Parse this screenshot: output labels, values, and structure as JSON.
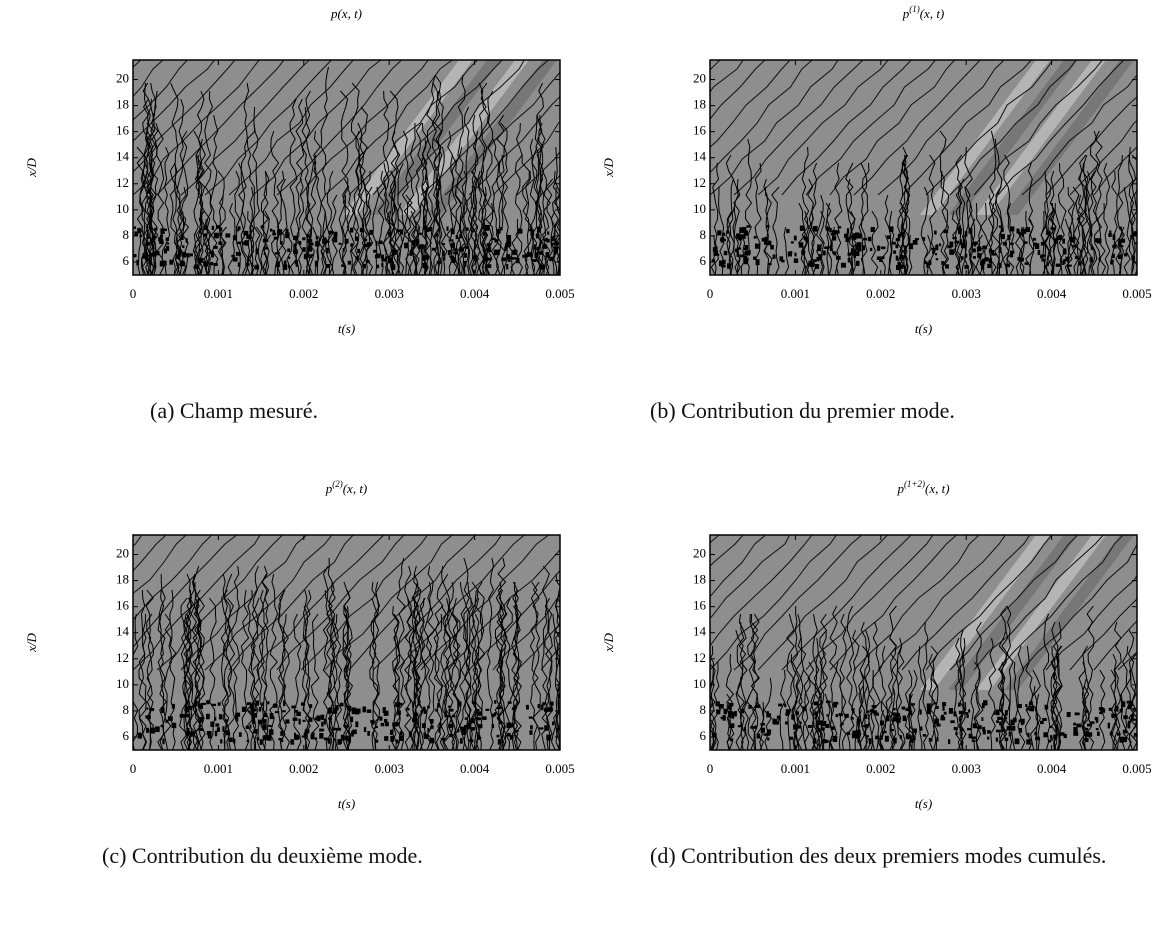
{
  "chart_data": [
    {
      "type": "contour",
      "title": {
        "symbol": "p",
        "arguments": "(x, t)"
      },
      "xlabel": "t(s)",
      "ylabel": "x/D",
      "xlim": [
        0,
        0.005
      ],
      "xticks": [
        0,
        0.001,
        0.002,
        0.003,
        0.004,
        0.005
      ],
      "ylim": [
        5,
        21.5
      ],
      "yticks": [
        6,
        8,
        10,
        12,
        14,
        16,
        18,
        20
      ],
      "caption": "(a) Champ mesuré."
    },
    {
      "type": "contour",
      "title": {
        "symbol": "p",
        "superscript": "(1)",
        "arguments": "(x, t)"
      },
      "xlabel": "t(s)",
      "ylabel": "x/D",
      "xlim": [
        0,
        0.005
      ],
      "xticks": [
        0,
        0.001,
        0.002,
        0.003,
        0.004,
        0.005
      ],
      "ylim": [
        5,
        21.5
      ],
      "yticks": [
        6,
        8,
        10,
        12,
        14,
        16,
        18,
        20
      ],
      "caption": "(b) Contribution du premier mode."
    },
    {
      "type": "contour",
      "title": {
        "symbol": "p",
        "superscript": "(2)",
        "arguments": "(x, t)"
      },
      "xlabel": "t(s)",
      "ylabel": "x/D",
      "xlim": [
        0,
        0.005
      ],
      "xticks": [
        0,
        0.001,
        0.002,
        0.003,
        0.004,
        0.005
      ],
      "ylim": [
        5,
        21.5
      ],
      "yticks": [
        6,
        8,
        10,
        12,
        14,
        16,
        18,
        20
      ],
      "caption": "(c) Contribution du deuxième mode."
    },
    {
      "type": "contour",
      "title": {
        "symbol": "p",
        "superscript": "(1+2)",
        "arguments": "(x, t)"
      },
      "xlabel": "t(s)",
      "ylabel": "x/D",
      "xlim": [
        0,
        0.005
      ],
      "xticks": [
        0,
        0.001,
        0.002,
        0.003,
        0.004,
        0.005
      ],
      "ylim": [
        5,
        21.5
      ],
      "yticks": [
        6,
        8,
        10,
        12,
        14,
        16,
        18,
        20
      ],
      "caption": "(d) Contribution des deux premiers modes cumulés."
    }
  ]
}
